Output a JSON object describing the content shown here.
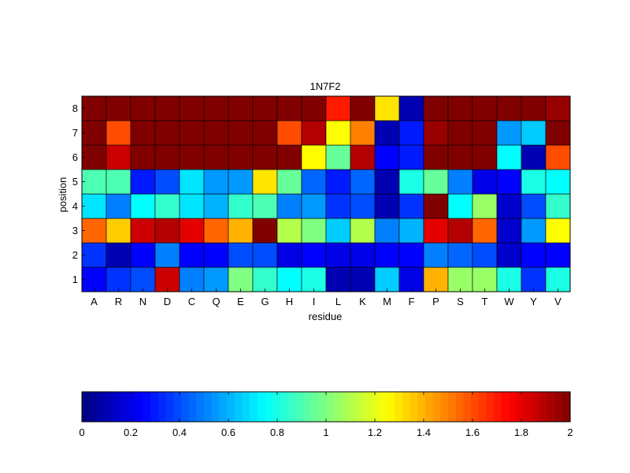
{
  "chart_data": {
    "type": "heatmap",
    "title": "1N7F2",
    "xlabel": "residue",
    "ylabel": "position",
    "x_categories": [
      "A",
      "R",
      "N",
      "D",
      "C",
      "Q",
      "E",
      "G",
      "H",
      "I",
      "L",
      "K",
      "M",
      "F",
      "P",
      "S",
      "T",
      "W",
      "Y",
      "V"
    ],
    "y_categories": [
      "1",
      "2",
      "3",
      "4",
      "5",
      "6",
      "7",
      "8"
    ],
    "values": [
      [
        0.25,
        0.35,
        0.4,
        1.85,
        0.5,
        0.55,
        1.0,
        0.85,
        0.75,
        0.8,
        0.1,
        0.1,
        0.65,
        0.2,
        1.4,
        1.05,
        1.05,
        0.8,
        0.35,
        0.8
      ],
      [
        0.35,
        0.1,
        0.25,
        0.5,
        0.25,
        0.25,
        0.4,
        0.4,
        0.2,
        0.25,
        0.2,
        0.2,
        0.25,
        0.25,
        0.5,
        0.45,
        0.4,
        0.15,
        0.25,
        0.25
      ],
      [
        1.55,
        1.35,
        1.85,
        1.9,
        1.8,
        1.55,
        1.4,
        2.0,
        1.1,
        1.0,
        0.65,
        1.1,
        0.5,
        0.6,
        1.8,
        1.9,
        1.55,
        0.15,
        0.55,
        1.25
      ],
      [
        0.7,
        0.5,
        0.75,
        0.85,
        0.7,
        0.6,
        0.85,
        0.9,
        0.5,
        0.55,
        0.35,
        0.4,
        0.1,
        0.35,
        2.0,
        0.75,
        1.05,
        0.15,
        0.4,
        0.85
      ],
      [
        0.9,
        0.9,
        0.3,
        0.4,
        0.7,
        0.55,
        0.55,
        1.3,
        0.95,
        0.45,
        0.3,
        0.45,
        0.1,
        0.8,
        0.95,
        0.5,
        0.2,
        0.25,
        0.8,
        0.75
      ],
      [
        2.0,
        1.85,
        2.0,
        2.0,
        2.0,
        2.0,
        2.0,
        2.0,
        2.0,
        1.25,
        0.95,
        1.9,
        0.25,
        0.3,
        2.0,
        2.0,
        2.0,
        0.75,
        0.1,
        1.6
      ],
      [
        2.0,
        1.6,
        2.0,
        2.0,
        2.0,
        2.0,
        2.0,
        2.0,
        1.6,
        1.9,
        1.25,
        1.5,
        0.1,
        0.3,
        1.95,
        2.0,
        2.0,
        0.55,
        0.65,
        2.0
      ],
      [
        2.0,
        2.0,
        2.0,
        2.0,
        2.0,
        2.0,
        2.0,
        2.0,
        2.0,
        2.0,
        1.7,
        2.0,
        1.3,
        0.1,
        2.0,
        2.0,
        2.0,
        2.0,
        2.0,
        1.95
      ]
    ],
    "colorbar": {
      "colormap": "jet",
      "min": 0,
      "max": 2,
      "ticks": [
        "0",
        "0.2",
        "0.4",
        "0.6",
        "0.8",
        "1",
        "1.2",
        "1.4",
        "1.6",
        "1.8",
        "2"
      ],
      "placement": "bottom"
    },
    "grid": true
  }
}
